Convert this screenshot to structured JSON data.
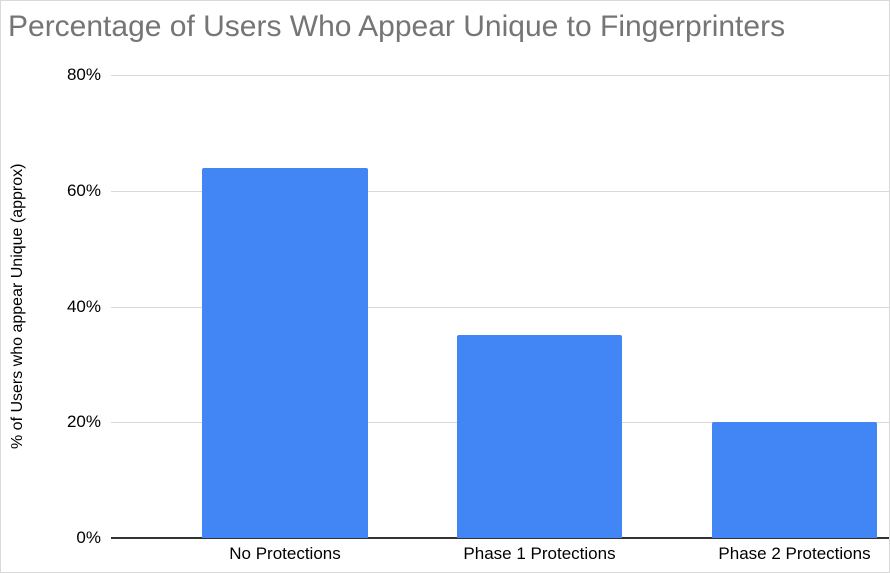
{
  "chart_data": {
    "type": "bar",
    "title": "Percentage of Users Who Appear Unique to Fingerprinters",
    "categories": [
      "No Protections",
      "Phase 1 Protections",
      "Phase 2 Protections"
    ],
    "values": [
      64,
      35,
      20
    ],
    "xlabel": "",
    "ylabel": "% of Users who appear Unique (approx)",
    "ylim": [
      0,
      80
    ],
    "yticks": [
      0,
      20,
      40,
      60,
      80
    ],
    "ytick_labels": [
      "0%",
      "20%",
      "40%",
      "60%",
      "80%"
    ],
    "grid": true,
    "legend_position": "none",
    "colors": {
      "bar": "#4285f4",
      "title": "#757575",
      "gridline": "#d9d9d9",
      "axis_line": "#333333",
      "tick_text": "#000000"
    }
  }
}
